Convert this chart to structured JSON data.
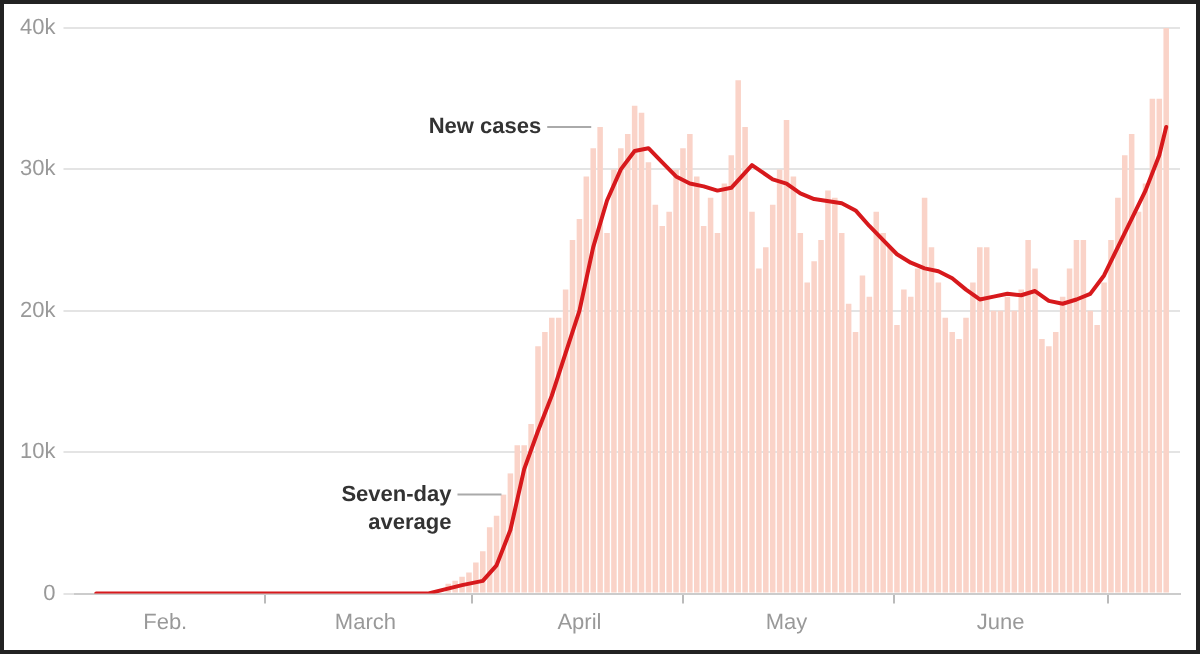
{
  "chart_data": {
    "type": "bar",
    "x": [
      "--01-22",
      "--01-23",
      "--01-24",
      "--01-25",
      "--01-26",
      "--01-27",
      "--01-28",
      "--01-29",
      "--01-30",
      "--01-31",
      "--02-01",
      "--02-02",
      "--02-03",
      "--02-04",
      "--02-05",
      "--02-06",
      "--02-07",
      "--02-08",
      "--02-09",
      "--02-10",
      "--02-11",
      "--02-12",
      "--02-13",
      "--02-14",
      "--02-15",
      "--02-16",
      "--02-17",
      "--02-18",
      "--02-19",
      "--02-20",
      "--02-21",
      "--02-22",
      "--02-23",
      "--02-24",
      "--02-25",
      "--02-26",
      "--02-27",
      "--02-28",
      "--02-29",
      "--03-01",
      "--03-02",
      "--03-03",
      "--03-04",
      "--03-05",
      "--03-06",
      "--03-07",
      "--03-08",
      "--03-09",
      "--03-10",
      "--03-11",
      "--03-12",
      "--03-13",
      "--03-14",
      "--03-15",
      "--03-16",
      "--03-17",
      "--03-18",
      "--03-19",
      "--03-20",
      "--03-21",
      "--03-22",
      "--03-23",
      "--03-24",
      "--03-25",
      "--03-26",
      "--03-27",
      "--03-28",
      "--03-29",
      "--03-30",
      "--03-31",
      "--04-01",
      "--04-02",
      "--04-03",
      "--04-04",
      "--04-05",
      "--04-06",
      "--04-07",
      "--04-08",
      "--04-09",
      "--04-10",
      "--04-11",
      "--04-12",
      "--04-13",
      "--04-14",
      "--04-15",
      "--04-16",
      "--04-17",
      "--04-18",
      "--04-19",
      "--04-20",
      "--04-21",
      "--04-22",
      "--04-23",
      "--04-24",
      "--04-25",
      "--04-26",
      "--04-27",
      "--04-28",
      "--04-29",
      "--04-30",
      "--05-01",
      "--05-02",
      "--05-03",
      "--05-04",
      "--05-05",
      "--05-06",
      "--05-07",
      "--05-08",
      "--05-09",
      "--05-10",
      "--05-11",
      "--05-12",
      "--05-13",
      "--05-14",
      "--05-15",
      "--05-16",
      "--05-17",
      "--05-18",
      "--05-19",
      "--05-20",
      "--05-21",
      "--05-22",
      "--05-23",
      "--05-24",
      "--05-25",
      "--05-26",
      "--05-27",
      "--05-28",
      "--05-29",
      "--05-30",
      "--05-31",
      "--06-01",
      "--06-02",
      "--06-03",
      "--06-04",
      "--06-05",
      "--06-06",
      "--06-07",
      "--06-08",
      "--06-09",
      "--06-10",
      "--06-11",
      "--06-12",
      "--06-13",
      "--06-14",
      "--06-15",
      "--06-16",
      "--06-17",
      "--06-18",
      "--06-19",
      "--06-20",
      "--06-21",
      "--06-22",
      "--06-23",
      "--06-24",
      "--06-25"
    ],
    "series": [
      {
        "color": "#fad3c8",
        "values": [
          0,
          0,
          0,
          0,
          0,
          0,
          0,
          0,
          0,
          0,
          0,
          0,
          0,
          0,
          0,
          0,
          0,
          0,
          0,
          0,
          0,
          0,
          0,
          0,
          0,
          0,
          0,
          0,
          0,
          0,
          0,
          0,
          0,
          0,
          0,
          0,
          0,
          0,
          0,
          0,
          0,
          0,
          0,
          0,
          0,
          0,
          0,
          0,
          0,
          null,
          null,
          700,
          900,
          1200,
          1500,
          2200,
          3000,
          4700,
          5500,
          7000,
          8500,
          10500,
          10500,
          12000,
          17500,
          18500,
          19500,
          19500,
          21500,
          25000,
          26500,
          29500,
          31500,
          33000,
          25500,
          30000,
          31500,
          32500,
          34500,
          34000,
          30500,
          27500,
          26000,
          27000,
          30000,
          31500,
          32500,
          29500,
          26000,
          28000,
          25500,
          29000,
          31000,
          36300,
          33000,
          27000,
          23000,
          24500,
          27500,
          30000,
          33500,
          29500,
          25500,
          22000,
          23500,
          25000,
          28500,
          28000,
          25500,
          20500,
          18500,
          22500,
          21000,
          27000,
          25500,
          24500,
          19000,
          21500,
          21000,
          23000,
          28000,
          24500,
          22000,
          19500,
          18500,
          18000,
          19500,
          22000,
          24500,
          24500,
          20000,
          20000,
          21000,
          20000,
          21500,
          25000,
          23000,
          18000,
          17500,
          18500,
          21000,
          23000,
          25000,
          25000,
          20000,
          19000,
          22000,
          25000,
          28000,
          31000,
          32500,
          27000,
          29000,
          35000,
          35000,
          40000
        ]
      },
      {
        "type": "line",
        "color": "#d7191c",
        "x": [
          "--01-22",
          "--03-10",
          "--03-15",
          "--03-18",
          "--03-20",
          "--03-22",
          "--03-24",
          "--03-26",
          "--03-28",
          "--03-30",
          "--04-01",
          "--04-03",
          "--04-05",
          "--04-07",
          "--04-09",
          "--04-11",
          "--04-13",
          "--04-15",
          "--04-17",
          "--04-19",
          "--04-21",
          "--04-23",
          "--04-26",
          "--04-29",
          "--05-01",
          "--05-03",
          "--05-05",
          "--05-09",
          "--05-11",
          "--05-13",
          "--05-15",
          "--05-17",
          "--05-19",
          "--05-21",
          "--05-23",
          "--05-25",
          "--05-27",
          "--05-29",
          "--05-31",
          "--06-02",
          "--06-04",
          "--06-06",
          "--06-08",
          "--06-10",
          "--06-12",
          "--06-14",
          "--06-16",
          "--06-18",
          "--06-20",
          "--06-22",
          "--06-24",
          "--06-25"
        ],
        "values": [
          0,
          0,
          600,
          900,
          2000,
          4500,
          8800,
          11500,
          14000,
          17000,
          20000,
          24500,
          27800,
          30000,
          31300,
          31500,
          30500,
          29500,
          29000,
          28800,
          28500,
          28700,
          30300,
          29300,
          29000,
          28300,
          27900,
          27600,
          27100,
          26000,
          25000,
          24000,
          23400,
          23000,
          22800,
          22300,
          21500,
          20800,
          21000,
          21200,
          21100,
          21400,
          20700,
          20500,
          20800,
          21200,
          22500,
          24500,
          26500,
          28500,
          31000,
          33000
        ]
      }
    ],
    "xlim": [
      "--01-19",
      "--06-27"
    ],
    "xticks": [
      {
        "value": "--02-01",
        "label": "Feb."
      },
      {
        "value": "--03-01",
        "label": "March"
      },
      {
        "value": "--04-01",
        "label": "April"
      },
      {
        "value": "--05-01",
        "label": "May"
      },
      {
        "value": "--06-01",
        "label": "June"
      }
    ],
    "ylim": [
      0,
      40000
    ],
    "yticks": [
      0,
      {
        "value": 10000,
        "label": "10k"
      },
      {
        "value": 20000,
        "label": "20k"
      },
      {
        "value": 30000,
        "label": "30k"
      },
      {
        "value": 40000,
        "label": "40k"
      }
    ],
    "grid": "y",
    "annotations": [
      {
        "text": "New cases",
        "x": "--04-03",
        "y": 33000
      },
      {
        "text": "Seven-day average",
        "x": "--03-21",
        "y": 7000
      }
    ]
  }
}
